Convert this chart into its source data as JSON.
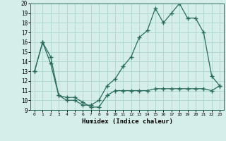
{
  "line1_x": [
    0,
    1,
    2,
    3,
    4,
    5,
    6,
    7,
    8,
    9,
    10,
    11,
    12,
    13,
    14,
    15,
    16,
    17,
    18,
    19,
    20,
    21,
    22,
    23
  ],
  "line1_y": [
    13,
    16,
    13.8,
    10.5,
    10.0,
    10.0,
    9.5,
    9.5,
    10.0,
    11.5,
    12.2,
    13.5,
    14.5,
    16.5,
    17.2,
    19.5,
    18.0,
    19.0,
    20.0,
    18.5,
    18.5,
    17.0,
    12.5,
    11.5
  ],
  "line2_x": [
    0,
    1,
    2,
    3,
    4,
    5,
    6,
    7,
    8,
    9,
    10,
    11,
    12,
    13,
    14,
    15,
    16,
    17,
    18,
    19,
    20,
    21,
    22,
    23
  ],
  "line2_y": [
    13,
    16,
    14.5,
    10.5,
    10.3,
    10.3,
    9.8,
    9.3,
    9.3,
    10.5,
    11.0,
    11.0,
    11.0,
    11.0,
    11.0,
    11.2,
    11.2,
    11.2,
    11.2,
    11.2,
    11.2,
    11.2,
    11.0,
    11.5
  ],
  "line_color": "#2a6b5e",
  "bg_color": "#d5eeea",
  "grid_color": "#b0d8d2",
  "xlabel": "Humidex (Indice chaleur)",
  "ylim": [
    9,
    20
  ],
  "xlim": [
    -0.5,
    23.5
  ],
  "yticks": [
    9,
    10,
    11,
    12,
    13,
    14,
    15,
    16,
    17,
    18,
    19,
    20
  ],
  "xticks": [
    0,
    1,
    2,
    3,
    4,
    5,
    6,
    7,
    8,
    9,
    10,
    11,
    12,
    13,
    14,
    15,
    16,
    17,
    18,
    19,
    20,
    21,
    22,
    23
  ],
  "marker": "+",
  "marker_size": 4,
  "line_width": 0.9
}
